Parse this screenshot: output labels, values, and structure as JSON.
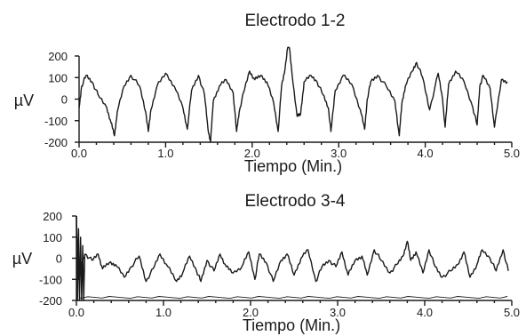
{
  "chart_data": [
    {
      "type": "line",
      "title": "Electrodo 1-2",
      "xlabel": "Tiempo (Min.)",
      "ylabel": "µV",
      "xlim": [
        0,
        5
      ],
      "ylim": [
        -200,
        200
      ],
      "x_ticks": [
        "0.0",
        "1.0",
        "2.0",
        "3.0",
        "4.0",
        "5.0"
      ],
      "y_ticks": [
        "200",
        "100",
        "0",
        "-100",
        "-200"
      ],
      "grid": false,
      "series": [
        {
          "x": [
            0.0,
            0.03,
            0.08,
            0.15,
            0.22,
            0.32,
            0.37,
            0.41,
            0.44,
            0.52,
            0.6,
            0.7,
            0.77,
            0.8,
            0.83,
            0.9,
            1.0,
            1.1,
            1.2,
            1.25,
            1.3,
            1.38,
            1.45,
            1.49,
            1.52,
            1.55,
            1.62,
            1.7,
            1.78,
            1.82,
            1.85,
            1.9,
            1.97,
            2.03,
            2.1,
            2.17,
            2.25,
            2.3,
            2.34,
            2.38,
            2.42,
            2.46,
            2.52,
            2.56,
            2.6,
            2.68,
            2.75,
            2.82,
            2.88,
            2.91,
            2.96,
            3.05,
            3.15,
            3.25,
            3.3,
            3.33,
            3.37,
            3.45,
            3.55,
            3.65,
            3.7,
            3.73,
            3.77,
            3.85,
            3.9,
            3.97,
            4.05,
            4.15,
            4.2,
            4.23,
            4.27,
            4.35,
            4.45,
            4.55,
            4.6,
            4.63,
            4.67,
            4.75,
            4.8,
            4.88,
            4.95
          ],
          "y": [
            -40,
            60,
            110,
            80,
            20,
            -40,
            -110,
            -170,
            -60,
            60,
            110,
            60,
            -60,
            -150,
            -50,
            60,
            120,
            60,
            -40,
            -140,
            40,
            110,
            20,
            -140,
            -200,
            -10,
            60,
            90,
            30,
            -150,
            -60,
            30,
            130,
            90,
            110,
            80,
            -20,
            -150,
            60,
            140,
            280,
            120,
            -80,
            -70,
            80,
            110,
            80,
            20,
            -40,
            -150,
            40,
            110,
            70,
            -50,
            -140,
            0,
            80,
            110,
            60,
            -10,
            -170,
            -20,
            60,
            130,
            170,
            100,
            -50,
            120,
            0,
            -130,
            70,
            130,
            80,
            -40,
            -120,
            60,
            110,
            50,
            -130,
            90,
            80
          ]
        }
      ]
    },
    {
      "type": "line",
      "title": "Electrodo 3-4",
      "xlabel": "Tiempo (Min.)",
      "ylabel": "µV",
      "xlim": [
        0,
        5
      ],
      "ylim": [
        -200,
        200
      ],
      "x_ticks": [
        "0.0",
        "1.0",
        "2.0",
        "3.0",
        "4.0",
        "5.0"
      ],
      "y_ticks": [
        "200",
        "100",
        "0",
        "-100",
        "-200"
      ],
      "grid": false,
      "series": [
        {
          "x": [
            0.0,
            0.02,
            0.05,
            0.1,
            0.18,
            0.25,
            0.3,
            0.38,
            0.45,
            0.55,
            0.63,
            0.72,
            0.8,
            0.88,
            0.96,
            1.05,
            1.15,
            1.22,
            1.3,
            1.38,
            1.43,
            1.5,
            1.58,
            1.65,
            1.72,
            1.8,
            1.9,
            1.98,
            2.05,
            2.1,
            2.18,
            2.26,
            2.35,
            2.42,
            2.5,
            2.58,
            2.66,
            2.75,
            2.82,
            2.9,
            2.98,
            3.05,
            3.12,
            3.2,
            3.28,
            3.34,
            3.42,
            3.5,
            3.6,
            3.68,
            3.75,
            3.8,
            3.84,
            3.9,
            3.98,
            4.05,
            4.12,
            4.2,
            4.3,
            4.38,
            4.45,
            4.52,
            4.6,
            4.66,
            4.75,
            4.82,
            4.9,
            4.96
          ],
          "y": [
            200,
            -100,
            -40,
            20,
            -10,
            20,
            -50,
            -20,
            -30,
            -90,
            -40,
            10,
            -110,
            -50,
            20,
            -40,
            -110,
            -70,
            10,
            -60,
            -110,
            -10,
            -60,
            20,
            -40,
            -70,
            -40,
            30,
            -100,
            20,
            -20,
            -110,
            -10,
            20,
            -80,
            0,
            40,
            -110,
            -40,
            -10,
            -40,
            30,
            -80,
            -10,
            10,
            -80,
            40,
            -10,
            -70,
            -30,
            10,
            80,
            -10,
            30,
            -70,
            40,
            -40,
            -90,
            -60,
            -30,
            30,
            -90,
            -30,
            40,
            0,
            -60,
            40,
            -60
          ]
        }
      ]
    }
  ]
}
